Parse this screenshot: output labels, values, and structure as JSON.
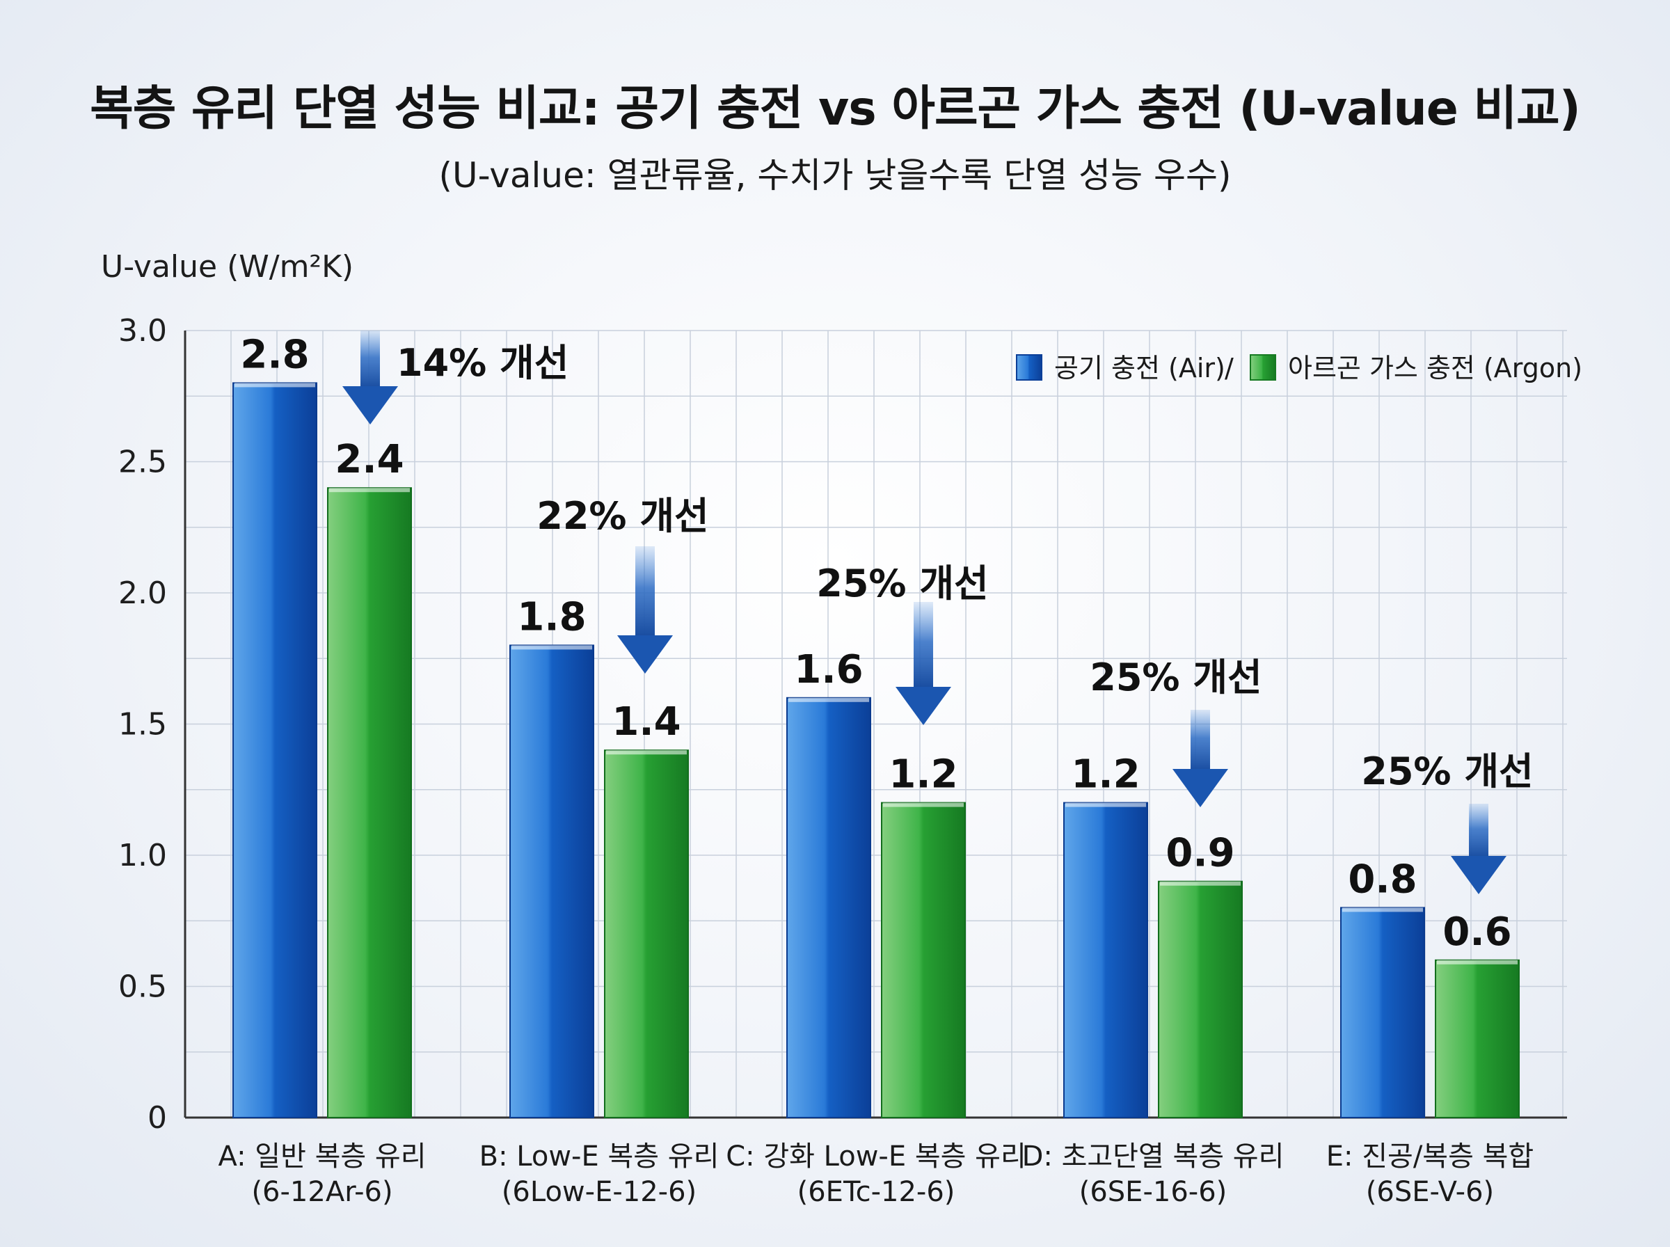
{
  "title": "복층 유리 단열 성능 비교: 공기 충전 vs 아르곤 가스 충전 (U-value 비교)",
  "subtitle": "(U-value: 열관류율, 수치가 낮을수록 단열 성능 우수)",
  "colors": {
    "air": "#1766cc",
    "argon": "#2aa33a",
    "arrow": "#1b56b0",
    "grid": "#c8d0dc"
  },
  "legend": {
    "air": "공기 충전 (Air)",
    "separator": "/",
    "argon": "아르곤 가스 충전 (Argon)",
    "position": "top-right"
  },
  "chart_data": {
    "type": "bar",
    "title": "복층 유리 단열 성능 비교: 공기 충전 vs 아르곤 가스 충전 (U-value 비교)",
    "subtitle": "(U-value: 열관류율, 수치가 낮을수록 단열 성능 우수)",
    "ylabel": "U-value (W/m²K)",
    "xlabel": "",
    "ylim": [
      0,
      3.0
    ],
    "yticks": [
      "0",
      "0.5",
      "1.0",
      "1.5",
      "2.0",
      "2.5",
      "3.0"
    ],
    "grid": true,
    "categories": [
      {
        "line1": "A: 일반 복층 유리",
        "line2": "(6-12Ar-6)"
      },
      {
        "line1": "B: Low-E 복층 유리",
        "line2": "(6Low-E-12-6)"
      },
      {
        "line1": "C: 강화 Low-E 복층 유리",
        "line2": "(6ETc-12-6)"
      },
      {
        "line1": "D: 초고단열 복층 유리",
        "line2": "(6SE-16-6)"
      },
      {
        "line1": "E: 진공/복층 복합",
        "line2": "(6SE-V-6)"
      }
    ],
    "series": [
      {
        "name": "공기 충전 (Air)",
        "values": [
          2.8,
          1.8,
          1.6,
          1.2,
          0.8
        ],
        "labels": [
          "2.8",
          "1.8",
          "1.6",
          "1.2",
          "0.8"
        ]
      },
      {
        "name": "아르곤 가스 충전 (Argon)",
        "values": [
          2.4,
          1.4,
          1.2,
          0.9,
          0.6
        ],
        "labels": [
          "2.4",
          "1.4",
          "1.2",
          "0.9",
          "0.6"
        ]
      }
    ],
    "annotations": [
      "14% 개선",
      "22% 개선",
      "25% 개선",
      "25% 개선",
      "25% 개선"
    ]
  }
}
